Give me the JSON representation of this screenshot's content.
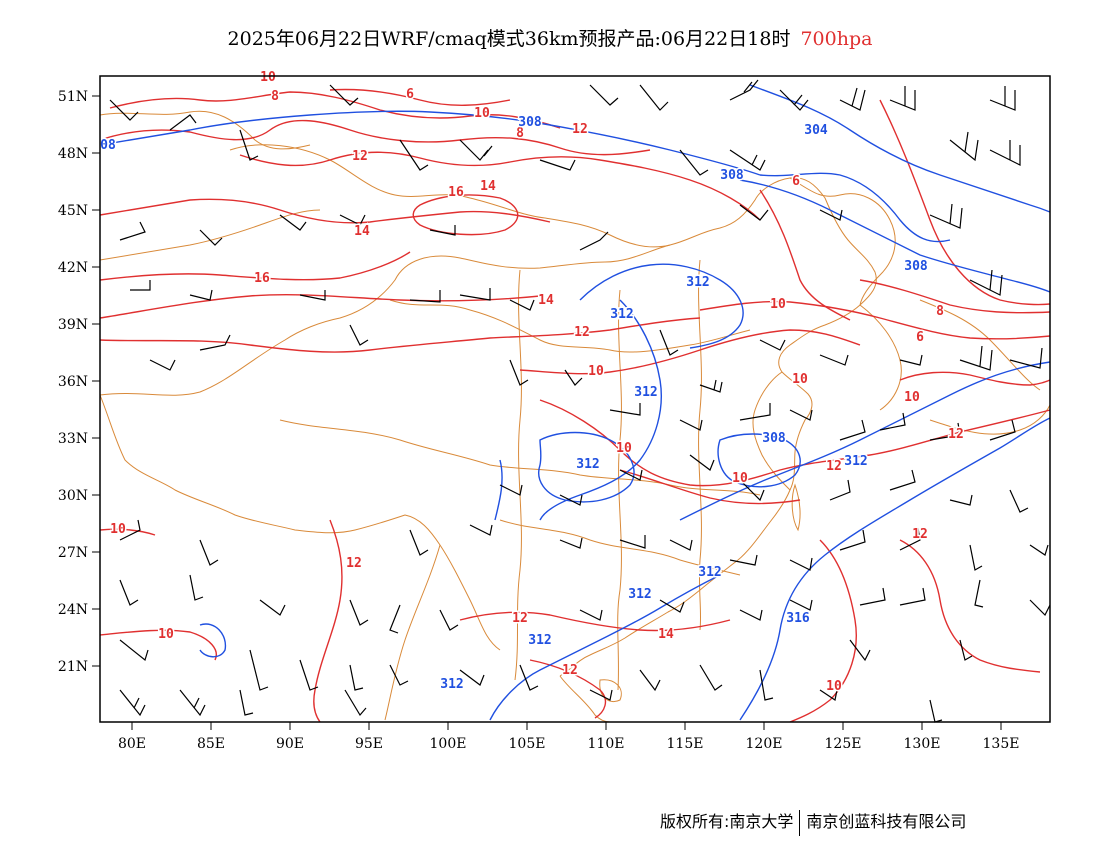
{
  "title": {
    "main": "2025年06月22日WRF/cmaq模式36km预报产品:06月22日18时",
    "level": "700hpa",
    "level_color": "#e03030"
  },
  "axes": {
    "lat_labels": [
      "51N",
      "48N",
      "45N",
      "42N",
      "39N",
      "36N",
      "33N",
      "30N",
      "27N",
      "24N",
      "21N"
    ],
    "lon_labels": [
      "80E",
      "85E",
      "90E",
      "95E",
      "100E",
      "105E",
      "110E",
      "115E",
      "120E",
      "125E",
      "130E",
      "135E"
    ]
  },
  "contours": {
    "temperature": {
      "color": "#e03030",
      "labels": [
        "10",
        "8",
        "6",
        "10",
        "8",
        "12",
        "12",
        "16",
        "14",
        "14",
        "16",
        "14",
        "12",
        "10",
        "10",
        "8",
        "6",
        "6",
        "10",
        "10",
        "10",
        "10",
        "12",
        "12",
        "10",
        "10",
        "12",
        "12",
        "14",
        "12",
        "10",
        "12"
      ]
    },
    "geopotential": {
      "color": "#2050e0",
      "labels": [
        "308",
        "08",
        "304",
        "308",
        "308",
        "312",
        "312",
        "312",
        "312",
        "308",
        "312",
        "312",
        "312",
        "316",
        "312",
        "312"
      ]
    }
  },
  "colors": {
    "boundary": "#d98a3a",
    "barb": "#000000",
    "frame": "#000000"
  },
  "footer": {
    "left": "版权所有:南京大学",
    "right": "南京创蓝科技有限公司"
  }
}
